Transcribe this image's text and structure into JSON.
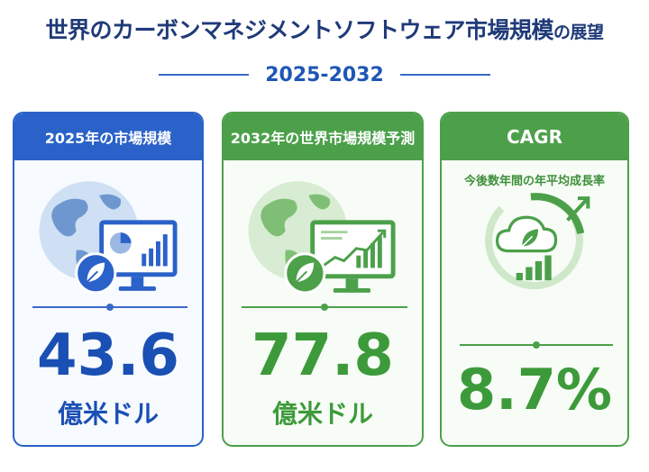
{
  "header": {
    "title_main": "世界のカーボンマネジメントソフトウェア市場規模",
    "title_suffix": "の展望",
    "years": "2025-2032"
  },
  "cards": [
    {
      "heading": "2025年の市場規模",
      "value": "43.6",
      "unit": "億米ドル",
      "icon": "globe-monitor-pie-chart-leaf-icon"
    },
    {
      "heading": "2032年の世界市場規模予測",
      "value": "77.8",
      "unit": "億米ドル",
      "icon": "globe-monitor-rising-line-leaf-icon"
    },
    {
      "heading": "CAGR",
      "note": "今後数年間の年平均成長率",
      "value": "8.7%",
      "icon": "cloud-leaf-growth-arrow-icon"
    }
  ],
  "colors": {
    "blue": "#2a62c9",
    "green": "#4ca04a",
    "title": "#1f3a78"
  }
}
